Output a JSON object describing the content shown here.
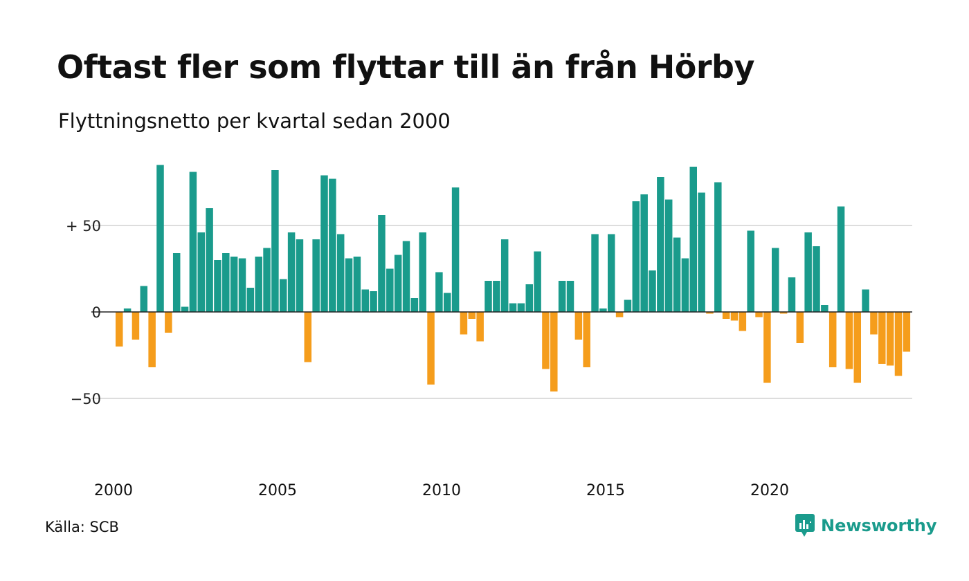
{
  "title": "Oftast fler som flyttar till än från Hörby",
  "subtitle": "Flyttningsnetto per kvartal sedan 2000",
  "source": "Källa: SCB",
  "brand": "Newsworthy",
  "colors": {
    "positive": "#1a9b8c",
    "negative": "#f59d1c",
    "grid": "#dddddd",
    "zero_line": "#222222",
    "brand": "#1a9b8c"
  },
  "chart_data": {
    "type": "bar",
    "x_start": "2000 Q1",
    "x_tick_labels": [
      "2000",
      "2005",
      "2010",
      "2015",
      "2020"
    ],
    "y_tick_labels": [
      "+ 50",
      "0",
      "−50"
    ],
    "y_ticks": [
      50,
      0,
      -50
    ],
    "ylim": [
      -85,
      85
    ],
    "grid": true,
    "values": [
      -20,
      2,
      -16,
      15,
      -32,
      85,
      -12,
      34,
      3,
      81,
      46,
      60,
      30,
      34,
      32,
      31,
      14,
      32,
      37,
      82,
      19,
      46,
      42,
      -29,
      42,
      79,
      77,
      45,
      31,
      32,
      13,
      12,
      56,
      25,
      33,
      41,
      8,
      46,
      -42,
      23,
      11,
      72,
      -13,
      -4,
      -17,
      18,
      18,
      42,
      5,
      5,
      16,
      35,
      -33,
      -46,
      18,
      18,
      -16,
      -32,
      45,
      2,
      45,
      -3,
      7,
      64,
      68,
      24,
      78,
      65,
      43,
      31,
      84,
      69,
      -1,
      75,
      -4,
      -5,
      -11,
      47,
      -3,
      -41,
      37,
      -1,
      20,
      -18,
      46,
      38,
      4,
      -32,
      61,
      -33,
      -41,
      13,
      -13,
      -30,
      -31,
      -37,
      -23
    ]
  }
}
